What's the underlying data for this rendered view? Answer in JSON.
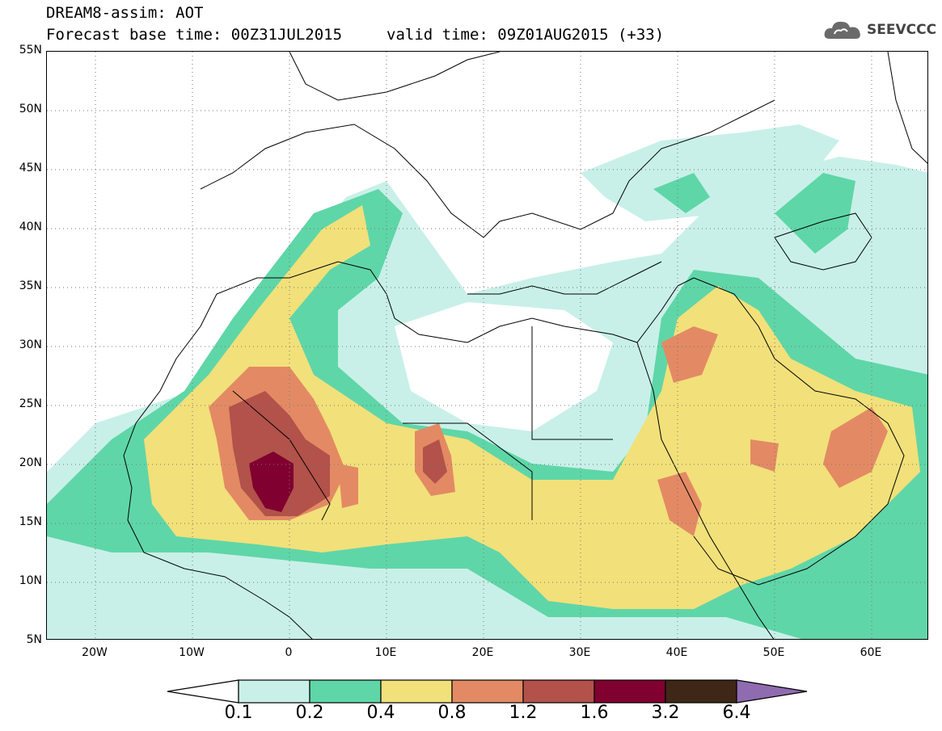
{
  "header": {
    "line1": "DREAM8-assim: AOT",
    "base_time": "Forecast base time: 00Z31JUL2015",
    "valid_time": "valid time: 09Z01AUG2015 (+33)"
  },
  "logo": {
    "text": "SEEVCCC",
    "icon": "cloud-icon"
  },
  "map": {
    "lat_labels": [
      "55N",
      "50N",
      "45N",
      "40N",
      "35N",
      "30N",
      "25N",
      "20N",
      "15N",
      "10N",
      "5N"
    ],
    "lon_labels": [
      "20W",
      "10W",
      "0",
      "10E",
      "20E",
      "30E",
      "40E",
      "50E",
      "60E"
    ]
  },
  "colorbar": {
    "labels": [
      "0.1",
      "0.2",
      "0.4",
      "0.8",
      "1.2",
      "1.6",
      "3.2",
      "6.4"
    ],
    "colors": [
      "#ffffff",
      "#c8f0e8",
      "#5fd6a8",
      "#f2e07a",
      "#e38a64",
      "#b2524a",
      "#800030",
      "#3e2716",
      "#8f6bb0"
    ]
  }
}
